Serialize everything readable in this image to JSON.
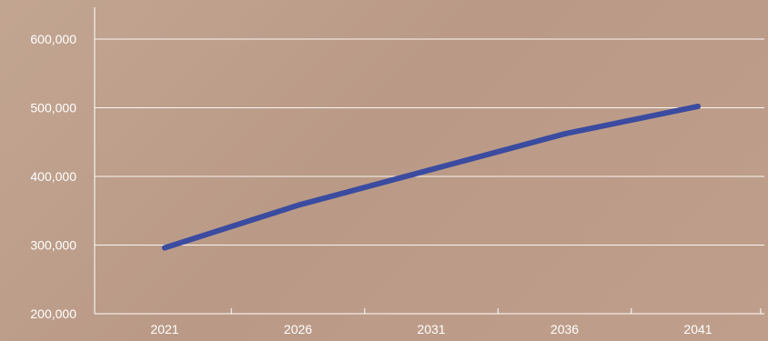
{
  "colors": {
    "background": "#bd9e8a",
    "gridline": "#ffffff",
    "axis": "#ffffff",
    "line": "#3a4ba0",
    "text": "#ffffff"
  },
  "chart_data": {
    "type": "line",
    "title": "",
    "xlabel": "",
    "ylabel": "",
    "x": [
      2021,
      2026,
      2031,
      2036,
      2041
    ],
    "x_tick_labels": [
      "2021",
      "2026",
      "2031",
      "2036",
      "2041"
    ],
    "y_tick_values": [
      200000,
      300000,
      400000,
      500000,
      600000
    ],
    "y_tick_labels": [
      "200,000",
      "300,000",
      "400,000",
      "500,000",
      "600,000"
    ],
    "ylim": [
      200000,
      600000
    ],
    "grid": true,
    "legend": "none",
    "series": [
      {
        "values": [
          296000,
          358000,
          410000,
          462000,
          502000
        ]
      }
    ]
  }
}
